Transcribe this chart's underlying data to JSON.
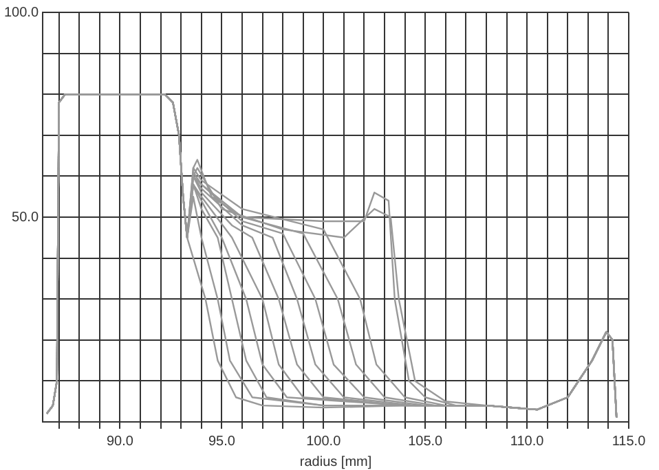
{
  "chart_data": {
    "type": "line",
    "xlabel": "radius [mm]",
    "xlim": [
      86.2,
      115.0
    ],
    "ylim": [
      0,
      100
    ],
    "xticks": [
      {
        "value": 87,
        "label": null
      },
      {
        "value": 88,
        "label": null
      },
      {
        "value": 89,
        "label": null
      },
      {
        "value": 90,
        "label": "90.0"
      },
      {
        "value": 91,
        "label": null
      },
      {
        "value": 92,
        "label": null
      },
      {
        "value": 93,
        "label": null
      },
      {
        "value": 94,
        "label": null
      },
      {
        "value": 95,
        "label": "95.0"
      },
      {
        "value": 96,
        "label": null
      },
      {
        "value": 97,
        "label": null
      },
      {
        "value": 98,
        "label": null
      },
      {
        "value": 99,
        "label": null
      },
      {
        "value": 100,
        "label": "100.0"
      },
      {
        "value": 101,
        "label": null
      },
      {
        "value": 102,
        "label": null
      },
      {
        "value": 103,
        "label": null
      },
      {
        "value": 104,
        "label": null
      },
      {
        "value": 105,
        "label": "105.0"
      },
      {
        "value": 106,
        "label": null
      },
      {
        "value": 107,
        "label": null
      },
      {
        "value": 108,
        "label": null
      },
      {
        "value": 109,
        "label": null
      },
      {
        "value": 110,
        "label": "110.0"
      },
      {
        "value": 111,
        "label": null
      },
      {
        "value": 112,
        "label": null
      },
      {
        "value": 113,
        "label": null
      },
      {
        "value": 114,
        "label": null
      },
      {
        "value": 115,
        "label": "115.0"
      }
    ],
    "yticks": [
      {
        "value": 0,
        "label": null
      },
      {
        "value": 10,
        "label": null
      },
      {
        "value": 20,
        "label": null
      },
      {
        "value": 30,
        "label": null
      },
      {
        "value": 40,
        "label": null
      },
      {
        "value": 50,
        "label": "50.0"
      },
      {
        "value": 60,
        "label": null
      },
      {
        "value": 70,
        "label": null
      },
      {
        "value": 80,
        "label": null
      },
      {
        "value": 90,
        "label": null
      },
      {
        "value": 100,
        "label": "100.0"
      }
    ],
    "grid": true,
    "marker": "none",
    "line_style": "solid",
    "legend": false,
    "series": [
      {
        "color": "#999999",
        "x": [
          86.4,
          86.7,
          86.9,
          87.0,
          87.3,
          92.2,
          92.6,
          92.9,
          93.1,
          93.3,
          93.6,
          94.2,
          94.8,
          95.7,
          97,
          100,
          104,
          108,
          110.5,
          112,
          113.2,
          113.9,
          114.2,
          114.4
        ],
        "values": [
          2,
          4,
          10,
          78,
          80,
          80,
          78,
          70,
          55,
          45,
          40,
          30,
          15,
          6,
          4,
          3.5,
          4,
          4,
          3,
          6,
          15,
          22,
          20,
          1
        ]
      },
      {
        "color": "#999999",
        "x": [
          86.4,
          86.7,
          86.9,
          87.0,
          87.3,
          92.2,
          92.6,
          92.9,
          93.1,
          93.3,
          93.6,
          94.0,
          94.8,
          95.4,
          96.5,
          100,
          104,
          108,
          110.5,
          112,
          113.2,
          113.9,
          114.2,
          114.4
        ],
        "values": [
          2,
          4,
          10,
          78,
          80,
          80,
          78,
          70,
          55,
          45,
          55,
          45,
          30,
          15,
          6,
          4,
          4,
          4,
          3,
          6,
          15,
          22,
          20,
          1
        ]
      },
      {
        "color": "#999999",
        "x": [
          86.4,
          86.7,
          86.9,
          87.0,
          87.3,
          92.2,
          92.6,
          92.9,
          93.1,
          93.3,
          93.6,
          94.0,
          94.8,
          95.5,
          96.2,
          97.2,
          100,
          104,
          108,
          110.5,
          112,
          113.2,
          113.9,
          114.2,
          114.4
        ],
        "values": [
          2,
          4,
          10,
          78,
          80,
          80,
          78,
          70,
          55,
          45,
          58,
          52,
          45,
          30,
          15,
          6,
          4,
          4,
          4,
          3,
          6,
          15,
          22,
          20,
          1
        ]
      },
      {
        "color": "#999999",
        "x": [
          86.4,
          86.7,
          86.9,
          87.0,
          87.3,
          92.2,
          92.6,
          92.9,
          93.1,
          93.3,
          93.6,
          94.0,
          95.0,
          96.2,
          97.0,
          98.2,
          104,
          108,
          110.5,
          112,
          113.2,
          113.9,
          114.2,
          114.4
        ],
        "values": [
          2,
          4,
          10,
          78,
          80,
          80,
          78,
          70,
          55,
          45,
          58,
          54,
          45,
          30,
          14,
          6,
          4,
          4,
          3,
          6,
          15,
          22,
          20,
          1
        ]
      },
      {
        "color": "#999999",
        "x": [
          86.4,
          86.7,
          86.9,
          87.0,
          87.3,
          92.2,
          92.6,
          92.9,
          93.1,
          93.3,
          93.6,
          94.0,
          95.5,
          97.0,
          97.8,
          99.0,
          104,
          108,
          110.5,
          112,
          113.2,
          113.9,
          114.2,
          114.4
        ],
        "values": [
          2,
          4,
          10,
          78,
          80,
          80,
          78,
          70,
          55,
          45,
          58,
          55,
          45,
          30,
          14,
          6,
          4,
          4,
          3,
          6,
          15,
          22,
          20,
          1
        ]
      },
      {
        "color": "#999999",
        "x": [
          86.4,
          86.7,
          86.9,
          87.0,
          87.3,
          92.2,
          92.6,
          92.9,
          93.1,
          93.3,
          93.6,
          94.0,
          95.5,
          96.5,
          97.8,
          98.7,
          100,
          104,
          108,
          110.5,
          112,
          113.2,
          113.9,
          114.2,
          114.4
        ],
        "values": [
          2,
          4,
          10,
          78,
          80,
          80,
          78,
          70,
          55,
          45,
          60,
          56,
          48,
          45,
          30,
          14,
          6,
          4,
          4,
          3,
          6,
          15,
          22,
          20,
          1
        ]
      },
      {
        "color": "#999999",
        "x": [
          86.4,
          86.7,
          86.9,
          87.0,
          87.3,
          92.2,
          92.6,
          92.9,
          93.1,
          93.3,
          93.6,
          94.0,
          96,
          97.5,
          98.7,
          99.6,
          101,
          104.5,
          108,
          110.5,
          112,
          113.2,
          113.9,
          114.2,
          114.4
        ],
        "values": [
          2,
          4,
          10,
          78,
          80,
          80,
          78,
          70,
          55,
          45,
          60,
          57,
          48,
          45,
          30,
          14,
          6,
          4,
          4,
          3,
          6,
          15,
          22,
          20,
          1
        ]
      },
      {
        "color": "#999999",
        "x": [
          86.4,
          86.7,
          86.9,
          87.0,
          87.3,
          92.2,
          92.6,
          92.9,
          93.1,
          93.3,
          93.6,
          94.0,
          96,
          98,
          99.6,
          100.5,
          102,
          105,
          108,
          110.5,
          112,
          113.2,
          113.9,
          114.2,
          114.4
        ],
        "values": [
          2,
          4,
          10,
          78,
          80,
          80,
          78,
          70,
          55,
          45,
          60,
          58,
          49,
          46,
          30,
          14,
          6,
          4,
          4,
          3,
          6,
          15,
          22,
          20,
          1
        ]
      },
      {
        "color": "#999999",
        "x": [
          86.4,
          86.7,
          86.9,
          87.0,
          87.3,
          92.2,
          92.6,
          92.9,
          93.1,
          93.3,
          93.6,
          94.0,
          96,
          99,
          100.7,
          101.6,
          103,
          105.5,
          108,
          110.5,
          112,
          113.2,
          113.9,
          114.2,
          114.4
        ],
        "values": [
          2,
          4,
          10,
          78,
          80,
          80,
          78,
          70,
          55,
          45,
          61,
          58,
          50,
          46,
          30,
          14,
          6,
          4,
          4,
          3,
          6,
          15,
          22,
          20,
          1
        ]
      },
      {
        "color": "#999999",
        "x": [
          86.4,
          86.7,
          86.9,
          87.0,
          87.3,
          92.2,
          92.6,
          92.9,
          93.1,
          93.3,
          93.6,
          94.0,
          96,
          100,
          101.8,
          102.6,
          104,
          106,
          108,
          110.5,
          112,
          113.2,
          113.9,
          114.2,
          114.4
        ],
        "values": [
          2,
          4,
          10,
          78,
          80,
          80,
          78,
          70,
          55,
          45,
          62,
          59,
          52,
          47,
          30,
          14,
          6,
          4,
          4,
          3,
          6,
          15,
          22,
          20,
          1
        ]
      },
      {
        "color": "#999999",
        "x": [
          86.4,
          86.7,
          86.9,
          87.0,
          87.3,
          92.2,
          92.6,
          92.9,
          93.1,
          93.3,
          93.6,
          93.8,
          94.5,
          96,
          100,
          102,
          102.5,
          103.2,
          103.5,
          104.2,
          105,
          106.5,
          108,
          110.5,
          112,
          113.2,
          113.9,
          114.2,
          114.4
        ],
        "values": [
          2,
          4,
          10,
          78,
          80,
          80,
          78,
          70,
          55,
          45,
          62,
          64,
          55,
          50,
          49,
          49,
          56,
          54,
          30,
          10,
          6,
          4,
          4,
          3,
          6,
          15,
          22,
          20,
          1
        ]
      },
      {
        "color": "#999999",
        "x": [
          86.4,
          86.7,
          86.9,
          87.0,
          87.3,
          92.2,
          92.6,
          92.9,
          93.1,
          93.3,
          93.6,
          93.8,
          95,
          98,
          101,
          102.5,
          103.3,
          103.7,
          104.5,
          106,
          108,
          110.5,
          112,
          113.2,
          113.9,
          114.2,
          114.4
        ],
        "values": [
          2,
          4,
          10,
          78,
          80,
          80,
          78,
          70,
          55,
          45,
          60,
          62,
          52,
          47,
          45,
          52,
          50,
          30,
          10,
          5,
          4,
          3,
          6,
          15,
          22,
          20,
          1
        ]
      }
    ]
  }
}
